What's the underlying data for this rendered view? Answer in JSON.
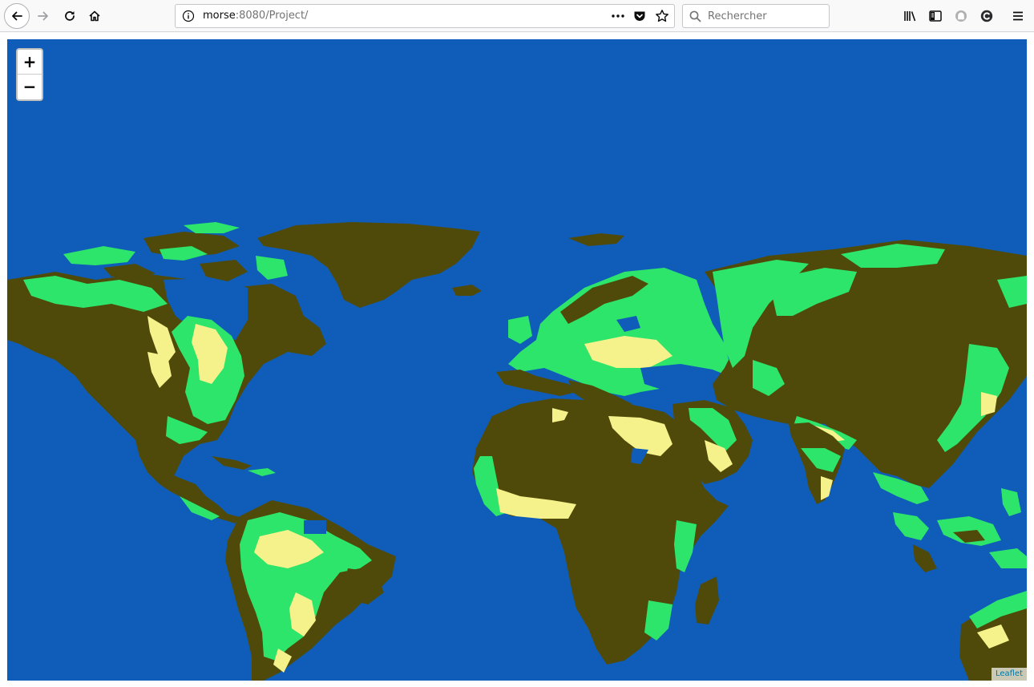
{
  "browser": {
    "url_host": "morse",
    "url_path": ":8080/Project/",
    "search_placeholder": "Rechercher",
    "icons": {
      "back": "back-arrow-icon",
      "forward": "forward-arrow-icon",
      "reload": "reload-icon",
      "home": "home-icon",
      "info": "info-icon",
      "page_actions": "more-dots-icon",
      "pocket": "pocket-icon",
      "bookmark": "star-icon",
      "search": "search-icon",
      "library": "library-icon",
      "sidebar": "sidebar-icon",
      "extension1": "ghostery-icon",
      "extension2": "extension-c-icon",
      "menu": "hamburger-menu-icon"
    }
  },
  "map": {
    "zoom_in_label": "+",
    "zoom_out_label": "−",
    "attribution": "Leaflet",
    "colors": {
      "ocean": "#0f5db8",
      "highland": "#4f4a0a",
      "lowland_green": "#2de56b",
      "lowland_light": "#f5f28c",
      "coastal_teal": "#0fa890"
    }
  }
}
